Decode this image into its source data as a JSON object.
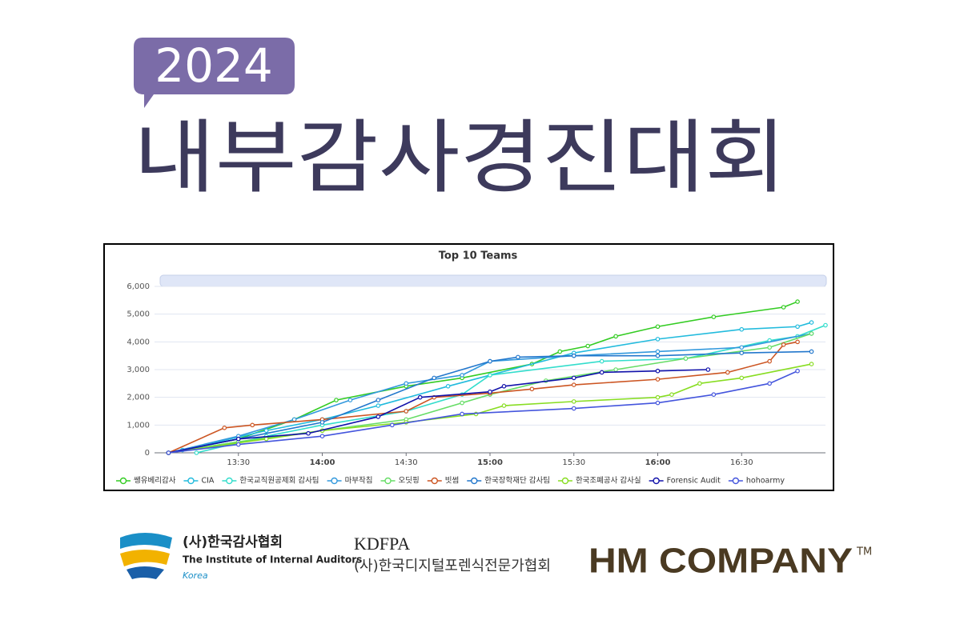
{
  "header": {
    "year": "2024",
    "title": "내부감사경진대회"
  },
  "chart_data": {
    "type": "line",
    "title": "Top 10 Teams",
    "xlim": [
      "13:00",
      "17:00"
    ],
    "xticks": [
      "13:30",
      "14:00",
      "14:30",
      "15:00",
      "15:30",
      "16:00",
      "16:30"
    ],
    "ylim": [
      0,
      6000
    ],
    "yticks": [
      0,
      {
        "value": 1000,
        "label": "1,000"
      },
      {
        "value": 2000,
        "label": "2,000"
      },
      {
        "value": 3000,
        "label": "3,000"
      },
      {
        "value": 4000,
        "label": "4,000"
      },
      {
        "value": 5000,
        "label": "5,000"
      },
      {
        "value": 6000,
        "label": "6,000"
      }
    ],
    "grid": true,
    "legend": "bottom",
    "series": [
      {
        "name": "쌩유베리감사",
        "color": "#33cc22",
        "x": [
          "13:05",
          "13:30",
          "13:50",
          "14:05",
          "14:30",
          "14:50",
          "15:15",
          "15:25",
          "15:35",
          "15:45",
          "16:00",
          "16:20",
          "16:45",
          "16:50"
        ],
        "values": [
          0,
          500,
          1200,
          1900,
          2400,
          2700,
          3200,
          3650,
          3850,
          4200,
          4550,
          4900,
          5250,
          5450
        ]
      },
      {
        "name": "CIA",
        "color": "#22bbdd",
        "x": [
          "13:10",
          "13:40",
          "14:00",
          "14:20",
          "14:45",
          "15:00",
          "15:30",
          "16:00",
          "16:30",
          "16:50",
          "16:55"
        ],
        "values": [
          100,
          800,
          1200,
          1700,
          2400,
          2800,
          3600,
          4100,
          4450,
          4550,
          4700
        ]
      },
      {
        "name": "한국교직원공제회 감사팀",
        "color": "#33ddcc",
        "x": [
          "13:15",
          "13:40",
          "14:00",
          "14:30",
          "14:50",
          "15:00",
          "15:40",
          "16:10",
          "16:40",
          "16:50",
          "17:00"
        ],
        "values": [
          0,
          600,
          1000,
          1500,
          2100,
          2800,
          3300,
          3400,
          4050,
          4200,
          4600
        ]
      },
      {
        "name": "마부작침",
        "color": "#3399dd",
        "x": [
          "13:05",
          "13:30",
          "13:50",
          "14:10",
          "14:30",
          "14:50",
          "15:00",
          "15:30",
          "16:00",
          "16:30",
          "16:55"
        ],
        "values": [
          0,
          600,
          1200,
          1900,
          2500,
          2800,
          3300,
          3500,
          3650,
          3800,
          4300
        ]
      },
      {
        "name": "오딧핑",
        "color": "#66dd66",
        "x": [
          "13:05",
          "13:30",
          "14:00",
          "14:30",
          "14:50",
          "15:00",
          "15:20",
          "15:45",
          "16:10",
          "16:40",
          "16:55"
        ],
        "values": [
          0,
          400,
          800,
          1200,
          1800,
          2100,
          2600,
          3000,
          3400,
          3800,
          4300
        ]
      },
      {
        "name": "빗썸",
        "color": "#cc5522",
        "x": [
          "13:05",
          "13:25",
          "13:35",
          "14:00",
          "14:30",
          "14:40",
          "15:00",
          "15:15",
          "15:30",
          "16:00",
          "16:25",
          "16:40",
          "16:45",
          "16:50"
        ],
        "values": [
          0,
          900,
          1000,
          1200,
          1500,
          2000,
          2150,
          2300,
          2450,
          2650,
          2900,
          3300,
          3900,
          4000
        ]
      },
      {
        "name": "한국장학재단 감사팀",
        "color": "#2277cc",
        "x": [
          "13:05",
          "13:30",
          "14:00",
          "14:20",
          "14:40",
          "15:00",
          "15:10",
          "15:30",
          "16:00",
          "16:30",
          "16:55"
        ],
        "values": [
          0,
          500,
          1100,
          1900,
          2700,
          3300,
          3450,
          3500,
          3500,
          3600,
          3650
        ]
      },
      {
        "name": "한국조폐공사 감사실",
        "color": "#88dd22",
        "x": [
          "13:05",
          "13:40",
          "14:00",
          "14:30",
          "14:55",
          "15:05",
          "15:30",
          "16:00",
          "16:05",
          "16:15",
          "16:30",
          "16:55"
        ],
        "values": [
          0,
          500,
          800,
          1100,
          1400,
          1700,
          1850,
          2000,
          2100,
          2500,
          2700,
          3200
        ]
      },
      {
        "name": "Forensic Audit",
        "color": "#1111aa",
        "x": [
          "13:05",
          "13:30",
          "13:55",
          "14:20",
          "14:35",
          "15:00",
          "15:05",
          "15:30",
          "15:40",
          "16:00",
          "16:18"
        ],
        "values": [
          0,
          500,
          700,
          1300,
          2000,
          2200,
          2400,
          2700,
          2900,
          2950,
          3000
        ]
      },
      {
        "name": "hohoarmy",
        "color": "#4455dd",
        "x": [
          "13:05",
          "13:30",
          "14:00",
          "14:25",
          "14:50",
          "15:30",
          "16:00",
          "16:20",
          "16:40",
          "16:50"
        ],
        "values": [
          0,
          300,
          600,
          1000,
          1400,
          1600,
          1800,
          2100,
          2500,
          2950
        ]
      }
    ]
  },
  "footer": {
    "iia_kr": "(사)한국감사협회",
    "iia_en": "The Institute of Internal Auditors",
    "iia_country": "Korea",
    "kdfpa": "KDFPA",
    "kdfpa_kr": "(사)한국디지털포렌식전문가협회",
    "hm": "HM COMPANY",
    "tm": "TM"
  }
}
